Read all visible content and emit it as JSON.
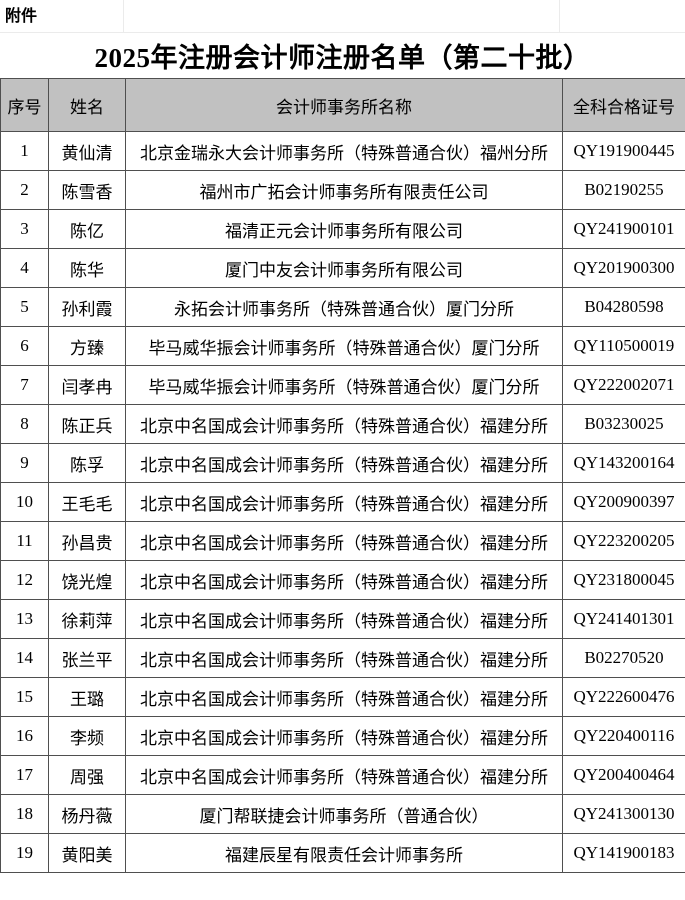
{
  "page": {
    "attachment_label": "附件",
    "title": "2025年注册会计师注册名单（第二十批）"
  },
  "table": {
    "headers": [
      "序号",
      "姓名",
      "会计师事务所名称",
      "全科合格证号"
    ],
    "rows": [
      {
        "no": "1",
        "name": "黄仙清",
        "firm": "北京金瑞永大会计师事务所（特殊普通合伙）福州分所",
        "cert": "QY191900445"
      },
      {
        "no": "2",
        "name": "陈雪香",
        "firm": "福州市广拓会计师事务所有限责任公司",
        "cert": "B02190255"
      },
      {
        "no": "3",
        "name": "陈亿",
        "firm": "福清正元会计师事务所有限公司",
        "cert": "QY241900101"
      },
      {
        "no": "4",
        "name": "陈华",
        "firm": "厦门中友会计师事务所有限公司",
        "cert": "QY201900300"
      },
      {
        "no": "5",
        "name": "孙利霞",
        "firm": "永拓会计师事务所（特殊普通合伙）厦门分所",
        "cert": "B04280598"
      },
      {
        "no": "6",
        "name": "方臻",
        "firm": "毕马威华振会计师事务所（特殊普通合伙）厦门分所",
        "cert": "QY110500019"
      },
      {
        "no": "7",
        "name": "闫孝冉",
        "firm": "毕马威华振会计师事务所（特殊普通合伙）厦门分所",
        "cert": "QY222002071"
      },
      {
        "no": "8",
        "name": "陈正兵",
        "firm": "北京中名国成会计师事务所（特殊普通合伙）福建分所",
        "cert": "B03230025"
      },
      {
        "no": "9",
        "name": "陈孚",
        "firm": "北京中名国成会计师事务所（特殊普通合伙）福建分所",
        "cert": "QY143200164"
      },
      {
        "no": "10",
        "name": "王毛毛",
        "firm": "北京中名国成会计师事务所（特殊普通合伙）福建分所",
        "cert": "QY200900397"
      },
      {
        "no": "11",
        "name": "孙昌贵",
        "firm": "北京中名国成会计师事务所（特殊普通合伙）福建分所",
        "cert": "QY223200205"
      },
      {
        "no": "12",
        "name": "饶光煌",
        "firm": "北京中名国成会计师事务所（特殊普通合伙）福建分所",
        "cert": "QY231800045"
      },
      {
        "no": "13",
        "name": "徐莉萍",
        "firm": "北京中名国成会计师事务所（特殊普通合伙）福建分所",
        "cert": "QY241401301"
      },
      {
        "no": "14",
        "name": "张兰平",
        "firm": "北京中名国成会计师事务所（特殊普通合伙）福建分所",
        "cert": "B02270520"
      },
      {
        "no": "15",
        "name": "王璐",
        "firm": "北京中名国成会计师事务所（特殊普通合伙）福建分所",
        "cert": "QY222600476"
      },
      {
        "no": "16",
        "name": "李频",
        "firm": "北京中名国成会计师事务所（特殊普通合伙）福建分所",
        "cert": "QY220400116"
      },
      {
        "no": "17",
        "name": "周强",
        "firm": "北京中名国成会计师事务所（特殊普通合伙）福建分所",
        "cert": "QY200400464"
      },
      {
        "no": "18",
        "name": "杨丹薇",
        "firm": "厦门帮联捷会计师事务所（普通合伙）",
        "cert": "QY241300130"
      },
      {
        "no": "19",
        "name": "黄阳美",
        "firm": "福建辰星有限责任会计师事务所",
        "cert": "QY141900183"
      }
    ]
  },
  "colors": {
    "header_bg": "#c1c1c1",
    "table_border": "#4f4f4f",
    "faint_gridline": "#ebebeb",
    "text": "#000000",
    "page_bg": "#ffffff"
  }
}
